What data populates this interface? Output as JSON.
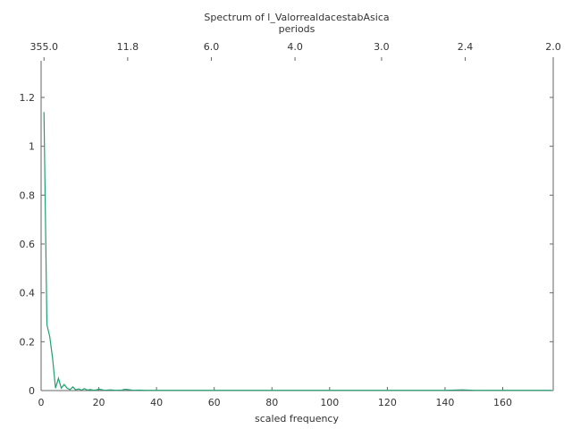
{
  "chart_data": {
    "type": "line",
    "title": "Spectrum of l_ValorrealdacestabAsica",
    "top_axis_label": "periods",
    "xlabel": "scaled frequency",
    "ylabel": "",
    "xlim": [
      0,
      177.5
    ],
    "ylim": [
      0,
      1.35
    ],
    "x_ticks": [
      0,
      20,
      40,
      60,
      80,
      100,
      120,
      140,
      160
    ],
    "x_tick_labels": [
      "0",
      "20",
      "40",
      "60",
      "80",
      "100",
      "120",
      "140",
      "160"
    ],
    "y_ticks": [
      0,
      0.2,
      0.4,
      0.6,
      0.8,
      1,
      1.2
    ],
    "y_tick_labels": [
      "0",
      "0.2",
      "0.4",
      "0.6",
      "0.8",
      "1",
      "1.2"
    ],
    "top_ticks": [
      1,
      30,
      59,
      88,
      118,
      147,
      177.5
    ],
    "top_tick_labels": [
      "355.0",
      "11.8",
      "6.0",
      "4.0",
      "3.0",
      "2.4",
      "2.0"
    ],
    "grid": false,
    "line_color": "#20a070",
    "series": [
      {
        "x": [
          1,
          2,
          3,
          4,
          5,
          6,
          7,
          8,
          9,
          10,
          11,
          12,
          13,
          14,
          15,
          16,
          17,
          18,
          19,
          20,
          22,
          24,
          26,
          28,
          29,
          30,
          32,
          34,
          36,
          40,
          45,
          50,
          60,
          70,
          80,
          90,
          100,
          110,
          120,
          130,
          140,
          146,
          150,
          160,
          170,
          177
        ],
        "y": [
          1.14,
          0.27,
          0.22,
          0.13,
          0.01,
          0.05,
          0.01,
          0.025,
          0.01,
          0.004,
          0.015,
          0.003,
          0.007,
          0.002,
          0.008,
          0.002,
          0.004,
          0.002,
          0.002,
          0.006,
          0.001,
          0.003,
          0.001,
          0.002,
          0.005,
          0.004,
          0.001,
          0.002,
          0.001,
          0.001,
          0.001,
          0.001,
          0.001,
          0.001,
          0.001,
          0.001,
          0.001,
          0.001,
          0.001,
          0.001,
          0.001,
          0.003,
          0.001,
          0.001,
          0.001,
          0.001
        ]
      }
    ]
  }
}
